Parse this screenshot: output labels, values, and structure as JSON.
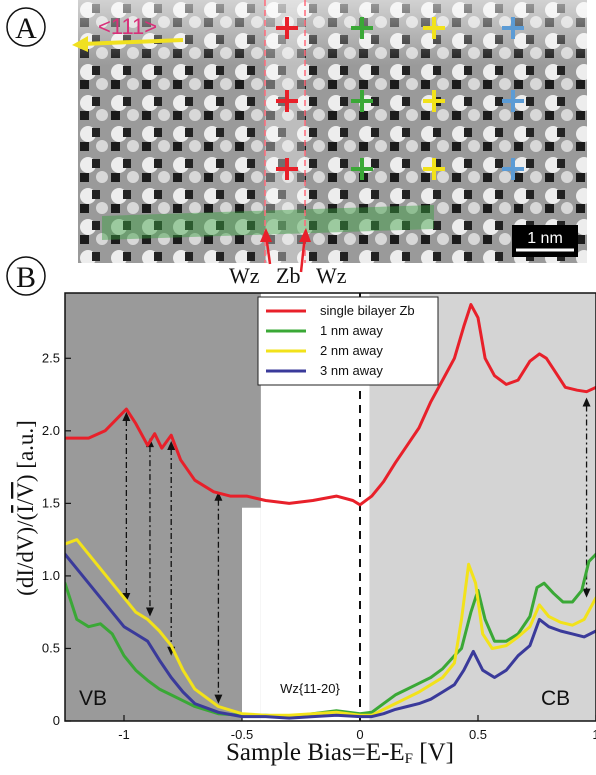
{
  "panel_a": {
    "letter": "A",
    "direction_label": "<111>",
    "scale_bar_label": "1 nm",
    "interface_labels": [
      "Wz",
      "Zb",
      "Wz"
    ],
    "marker_colors": {
      "red": "#e8202a",
      "green": "#3aa836",
      "yellow": "#f2e21a",
      "blue": "#5b9bd5"
    },
    "direction_color": "#f0e020",
    "direction_text_color": "#d8307a",
    "stripe_color": "#3aa040"
  },
  "panel_b": {
    "letter": "B"
  },
  "chart_data": {
    "type": "line",
    "xlabel": "Sample Bias=E-E",
    "xlabel_sub": "F",
    "xlabel_suffix": " [V]",
    "ylabel": "(dI/dV)/(I/V) [a.u.]",
    "xlim": [
      -1.25,
      1.0
    ],
    "ylim": [
      0,
      2.95
    ],
    "xticks": [
      -1,
      -0.5,
      0,
      0.5,
      1
    ],
    "xtick_labels": [
      "-1",
      "-0.5",
      "0",
      "0.5",
      "1"
    ],
    "yticks": [
      0,
      0.5,
      1.0,
      1.5,
      2.0,
      2.5
    ],
    "ytick_labels": [
      "0",
      "0.5",
      "1.0",
      "1.5",
      "2.0",
      "2.5"
    ],
    "region_labels": {
      "vb": "VB",
      "cb": "CB",
      "gap": "Wz{11-20}"
    },
    "shading": {
      "vb_dark": {
        "x": [
          -1.25,
          -0.42
        ],
        "color": "#9a9a9a"
      },
      "vb_dark_lower": {
        "x": [
          -1.25,
          -0.5
        ],
        "y": [
          0,
          1.47
        ],
        "color": "#9a9a9a"
      },
      "cb_light": {
        "x": [
          0.04,
          1.0
        ],
        "color": "#d4d4d4"
      }
    },
    "series": [
      {
        "name": "single bilayer Zb",
        "color": "#e8202a",
        "x": [
          -1.25,
          -1.15,
          -1.08,
          -1.02,
          -0.99,
          -0.95,
          -0.9,
          -0.87,
          -0.84,
          -0.8,
          -0.76,
          -0.7,
          -0.62,
          -0.55,
          -0.48,
          -0.4,
          -0.3,
          -0.2,
          -0.1,
          -0.03,
          0.0,
          0.05,
          0.1,
          0.15,
          0.2,
          0.25,
          0.3,
          0.35,
          0.4,
          0.44,
          0.47,
          0.5,
          0.53,
          0.57,
          0.62,
          0.67,
          0.72,
          0.76,
          0.79,
          0.83,
          0.87,
          0.92,
          0.96,
          1.0
        ],
        "y": [
          1.95,
          1.95,
          2.0,
          2.1,
          2.15,
          2.05,
          1.9,
          1.98,
          1.88,
          1.97,
          1.8,
          1.66,
          1.58,
          1.55,
          1.55,
          1.52,
          1.5,
          1.52,
          1.55,
          1.52,
          1.49,
          1.55,
          1.65,
          1.78,
          1.9,
          2.02,
          2.2,
          2.35,
          2.5,
          2.72,
          2.87,
          2.78,
          2.5,
          2.38,
          2.32,
          2.35,
          2.48,
          2.53,
          2.5,
          2.4,
          2.3,
          2.28,
          2.27,
          2.3
        ]
      },
      {
        "name": "1 nm away",
        "color": "#3aa836",
        "x": [
          -1.25,
          -1.2,
          -1.15,
          -1.1,
          -1.05,
          -1.0,
          -0.95,
          -0.9,
          -0.85,
          -0.8,
          -0.75,
          -0.7,
          -0.6,
          -0.5,
          -0.4,
          -0.3,
          -0.2,
          -0.1,
          0.0,
          0.05,
          0.1,
          0.15,
          0.2,
          0.25,
          0.3,
          0.35,
          0.4,
          0.43,
          0.47,
          0.5,
          0.53,
          0.57,
          0.62,
          0.67,
          0.72,
          0.75,
          0.78,
          0.82,
          0.86,
          0.9,
          0.94,
          0.97,
          1.0
        ],
        "y": [
          0.95,
          0.7,
          0.65,
          0.67,
          0.6,
          0.45,
          0.35,
          0.28,
          0.22,
          0.18,
          0.14,
          0.1,
          0.05,
          0.04,
          0.04,
          0.03,
          0.05,
          0.07,
          0.05,
          0.06,
          0.12,
          0.18,
          0.22,
          0.26,
          0.3,
          0.36,
          0.45,
          0.5,
          0.75,
          0.9,
          0.7,
          0.55,
          0.55,
          0.6,
          0.72,
          0.92,
          0.95,
          0.88,
          0.82,
          0.82,
          0.9,
          1.1,
          1.15
        ]
      },
      {
        "name": "2 nm away",
        "color": "#f2e21a",
        "x": [
          -1.25,
          -1.2,
          -1.15,
          -1.1,
          -1.05,
          -1.0,
          -0.95,
          -0.9,
          -0.85,
          -0.8,
          -0.75,
          -0.7,
          -0.6,
          -0.5,
          -0.4,
          -0.3,
          -0.2,
          -0.1,
          0.0,
          0.05,
          0.1,
          0.15,
          0.2,
          0.25,
          0.3,
          0.35,
          0.4,
          0.43,
          0.46,
          0.49,
          0.52,
          0.56,
          0.62,
          0.67,
          0.72,
          0.76,
          0.8,
          0.85,
          0.9,
          0.95,
          1.0
        ],
        "y": [
          1.22,
          1.25,
          1.15,
          1.05,
          0.95,
          0.85,
          0.75,
          0.7,
          0.62,
          0.52,
          0.35,
          0.22,
          0.1,
          0.05,
          0.04,
          0.04,
          0.05,
          0.06,
          0.04,
          0.04,
          0.08,
          0.12,
          0.16,
          0.2,
          0.25,
          0.3,
          0.4,
          0.7,
          1.08,
          0.95,
          0.6,
          0.5,
          0.52,
          0.58,
          0.65,
          0.8,
          0.72,
          0.68,
          0.66,
          0.7,
          0.85
        ]
      },
      {
        "name": "3 nm away",
        "color": "#3a3a9a",
        "x": [
          -1.25,
          -1.2,
          -1.15,
          -1.1,
          -1.05,
          -1.0,
          -0.95,
          -0.9,
          -0.85,
          -0.8,
          -0.75,
          -0.7,
          -0.6,
          -0.5,
          -0.4,
          -0.3,
          -0.2,
          -0.1,
          0.0,
          0.05,
          0.1,
          0.15,
          0.2,
          0.25,
          0.3,
          0.35,
          0.4,
          0.44,
          0.48,
          0.52,
          0.57,
          0.62,
          0.67,
          0.72,
          0.76,
          0.8,
          0.85,
          0.9,
          0.95,
          1.0
        ],
        "y": [
          1.15,
          1.05,
          0.95,
          0.85,
          0.75,
          0.65,
          0.6,
          0.55,
          0.42,
          0.3,
          0.2,
          0.12,
          0.06,
          0.03,
          0.03,
          0.02,
          0.03,
          0.04,
          0.03,
          0.03,
          0.05,
          0.08,
          0.1,
          0.12,
          0.15,
          0.2,
          0.25,
          0.35,
          0.48,
          0.35,
          0.3,
          0.35,
          0.45,
          0.52,
          0.7,
          0.65,
          0.62,
          0.6,
          0.58,
          0.62
        ]
      }
    ],
    "arrows": [
      {
        "x": -0.99,
        "y1": 2.13,
        "y2": 0.82
      },
      {
        "x": -0.89,
        "y1": 1.95,
        "y2": 0.72
      },
      {
        "x": -0.8,
        "y1": 1.93,
        "y2": 0.45
      },
      {
        "x": -0.6,
        "y1": 1.58,
        "y2": 0.12
      },
      {
        "x": 0.96,
        "y1": 2.23,
        "y2": 0.85
      }
    ]
  }
}
